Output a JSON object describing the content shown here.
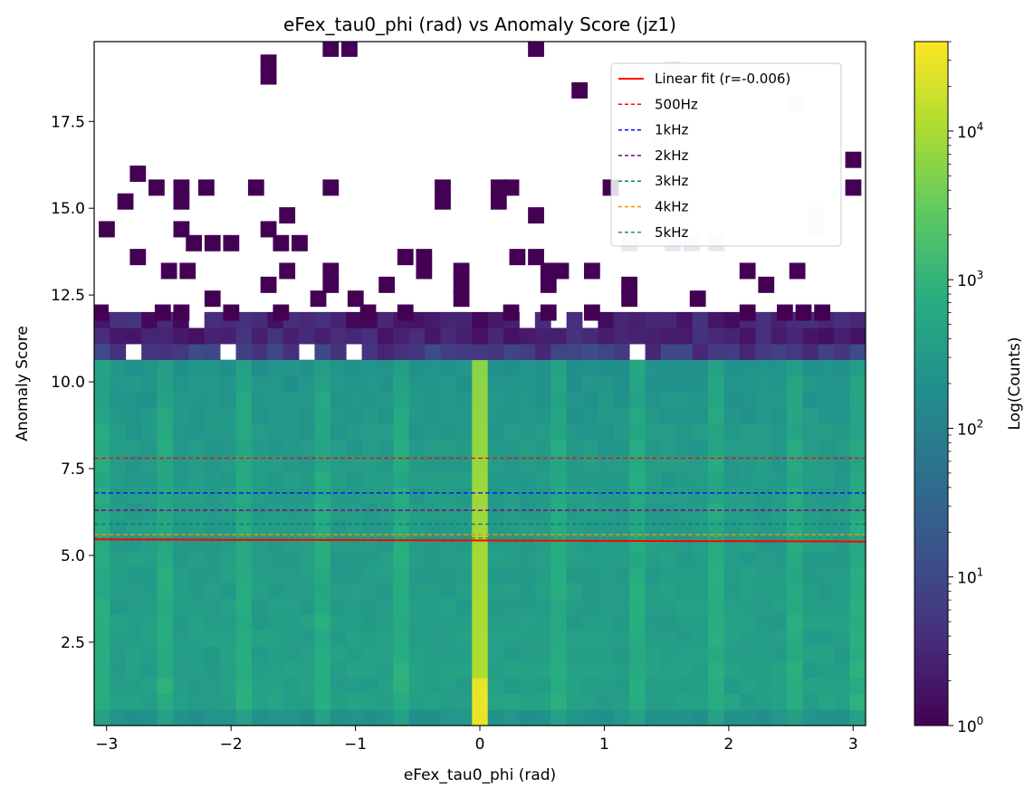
{
  "chart_data": {
    "type": "heatmap",
    "title": "eFex_tau0_phi (rad) vs Anomaly Score (jz1)",
    "xlabel": "eFex_tau0_phi (rad)",
    "ylabel": "Anomaly Score",
    "xlim": [
      -3.1,
      3.1
    ],
    "ylim": [
      0.1,
      19.8
    ],
    "x_ticks": [
      -3,
      -2,
      -1,
      0,
      1,
      2,
      3
    ],
    "x_tick_labels": [
      "−3",
      "−2",
      "−1",
      "0",
      "1",
      "2",
      "3"
    ],
    "y_ticks": [
      2.5,
      5.0,
      7.5,
      10.0,
      12.5,
      15.0,
      17.5
    ],
    "y_tick_labels": [
      "2.5",
      "5.0",
      "7.5",
      "10.0",
      "12.5",
      "15.0",
      "17.5"
    ],
    "grid": false,
    "binning": {
      "x_bins": 49,
      "x_min": -3.1,
      "x_max": 3.1,
      "y_bins": 43,
      "y_min": 0.1,
      "y_max": 19.8
    },
    "colorbar": {
      "label": "Log(Counts)",
      "scale": "log",
      "min": 1,
      "max": 40000,
      "colormap": "viridis",
      "tick_values": [
        1,
        10,
        100,
        1000,
        10000
      ],
      "tick_labels": [
        {
          "base": "10",
          "exp": "0"
        },
        {
          "base": "10",
          "exp": "1"
        },
        {
          "base": "10",
          "exp": "2"
        },
        {
          "base": "10",
          "exp": "3"
        },
        {
          "base": "10",
          "exp": "4"
        }
      ]
    },
    "density_profile": {
      "description_free": true,
      "dense_band_y_max": 10.7,
      "core_counts_y_peak": 400,
      "phi_zero_column_counts": 12000,
      "sparse_band_y": [
        10.7,
        11.9
      ],
      "sparse_band_counts": 5
    },
    "sparse_bins": [
      [
        -2.75,
        16.0
      ],
      [
        -2.6,
        15.6
      ],
      [
        -2.85,
        15.2
      ],
      [
        -2.4,
        15.6
      ],
      [
        -2.4,
        15.2
      ],
      [
        -2.2,
        15.6
      ],
      [
        -1.8,
        15.6
      ],
      [
        -1.2,
        15.6
      ],
      [
        -1.55,
        14.8
      ],
      [
        -3.0,
        14.4
      ],
      [
        -2.4,
        14.4
      ],
      [
        -1.7,
        14.4
      ],
      [
        -2.3,
        14.0
      ],
      [
        -2.15,
        14.0
      ],
      [
        -2.0,
        14.0
      ],
      [
        -1.6,
        14.0
      ],
      [
        -1.45,
        14.0
      ],
      [
        -2.75,
        13.6
      ],
      [
        -2.5,
        13.2
      ],
      [
        -2.35,
        13.2
      ],
      [
        -1.55,
        13.2
      ],
      [
        -1.2,
        13.2
      ],
      [
        -1.2,
        12.8
      ],
      [
        -0.75,
        12.8
      ],
      [
        -0.6,
        13.6
      ],
      [
        -0.45,
        13.6
      ],
      [
        -0.45,
        13.2
      ],
      [
        -0.3,
        15.6
      ],
      [
        -0.3,
        15.2
      ],
      [
        -0.15,
        13.2
      ],
      [
        0.15,
        15.6
      ],
      [
        0.15,
        15.2
      ],
      [
        0.25,
        15.6
      ],
      [
        0.3,
        13.6
      ],
      [
        0.45,
        13.6
      ],
      [
        0.45,
        14.8
      ],
      [
        0.55,
        13.2
      ],
      [
        0.65,
        13.2
      ],
      [
        0.55,
        12.8
      ],
      [
        0.9,
        13.2
      ],
      [
        1.05,
        15.6
      ],
      [
        1.2,
        12.8
      ],
      [
        2.15,
        13.2
      ],
      [
        2.3,
        12.8
      ],
      [
        2.55,
        13.2
      ],
      [
        3.0,
        15.6
      ],
      [
        3.0,
        16.4
      ],
      [
        -1.7,
        19.2
      ],
      [
        -1.7,
        18.8
      ],
      [
        -1.2,
        19.6
      ],
      [
        -1.05,
        19.6
      ],
      [
        0.45,
        19.6
      ],
      [
        0.8,
        18.4
      ],
      [
        -1.7,
        12.8
      ],
      [
        -2.4,
        12.0
      ],
      [
        -2.55,
        12.0
      ],
      [
        -2.15,
        12.4
      ],
      [
        -2.0,
        12.0
      ],
      [
        -1.3,
        12.4
      ],
      [
        -1.0,
        12.4
      ],
      [
        -0.6,
        12.0
      ],
      [
        -0.15,
        12.4
      ],
      [
        -0.15,
        12.8
      ],
      [
        0.25,
        12.0
      ],
      [
        0.55,
        12.0
      ],
      [
        0.9,
        12.0
      ],
      [
        1.2,
        12.4
      ],
      [
        1.75,
        12.4
      ],
      [
        2.15,
        12.0
      ],
      [
        2.45,
        12.0
      ],
      [
        2.6,
        12.0
      ],
      [
        2.75,
        12.0
      ],
      [
        -3.05,
        12.0
      ],
      [
        -0.9,
        12.0
      ],
      [
        -1.6,
        12.0
      ]
    ],
    "faint_bins": [
      [
        1.55,
        19.0
      ],
      [
        1.45,
        16.8
      ],
      [
        2.55,
        18.0
      ],
      [
        2.7,
        14.8
      ],
      [
        2.7,
        14.4
      ],
      [
        1.2,
        14.0
      ],
      [
        1.55,
        14.0
      ],
      [
        1.7,
        14.0
      ],
      [
        1.9,
        14.0
      ]
    ],
    "fit_line": {
      "name": "Linear fit (r=-0.006)",
      "color": "#ff0000",
      "y_at_xmin": 5.46,
      "y_at_xmax": 5.4
    },
    "threshold_lines": [
      {
        "name": "500Hz",
        "y": 7.8,
        "color": "#ff0000"
      },
      {
        "name": "1kHz",
        "y": 6.8,
        "color": "#0000ff"
      },
      {
        "name": "2kHz",
        "y": 6.3,
        "color": "#800080"
      },
      {
        "name": "3kHz",
        "y": 5.9,
        "color": "#008080"
      },
      {
        "name": "4kHz",
        "y": 5.6,
        "color": "#ff8c00"
      },
      {
        "name": "5kHz",
        "y": 5.5,
        "color": "#2e8b57"
      }
    ],
    "legend": {
      "position": "top-right"
    }
  }
}
